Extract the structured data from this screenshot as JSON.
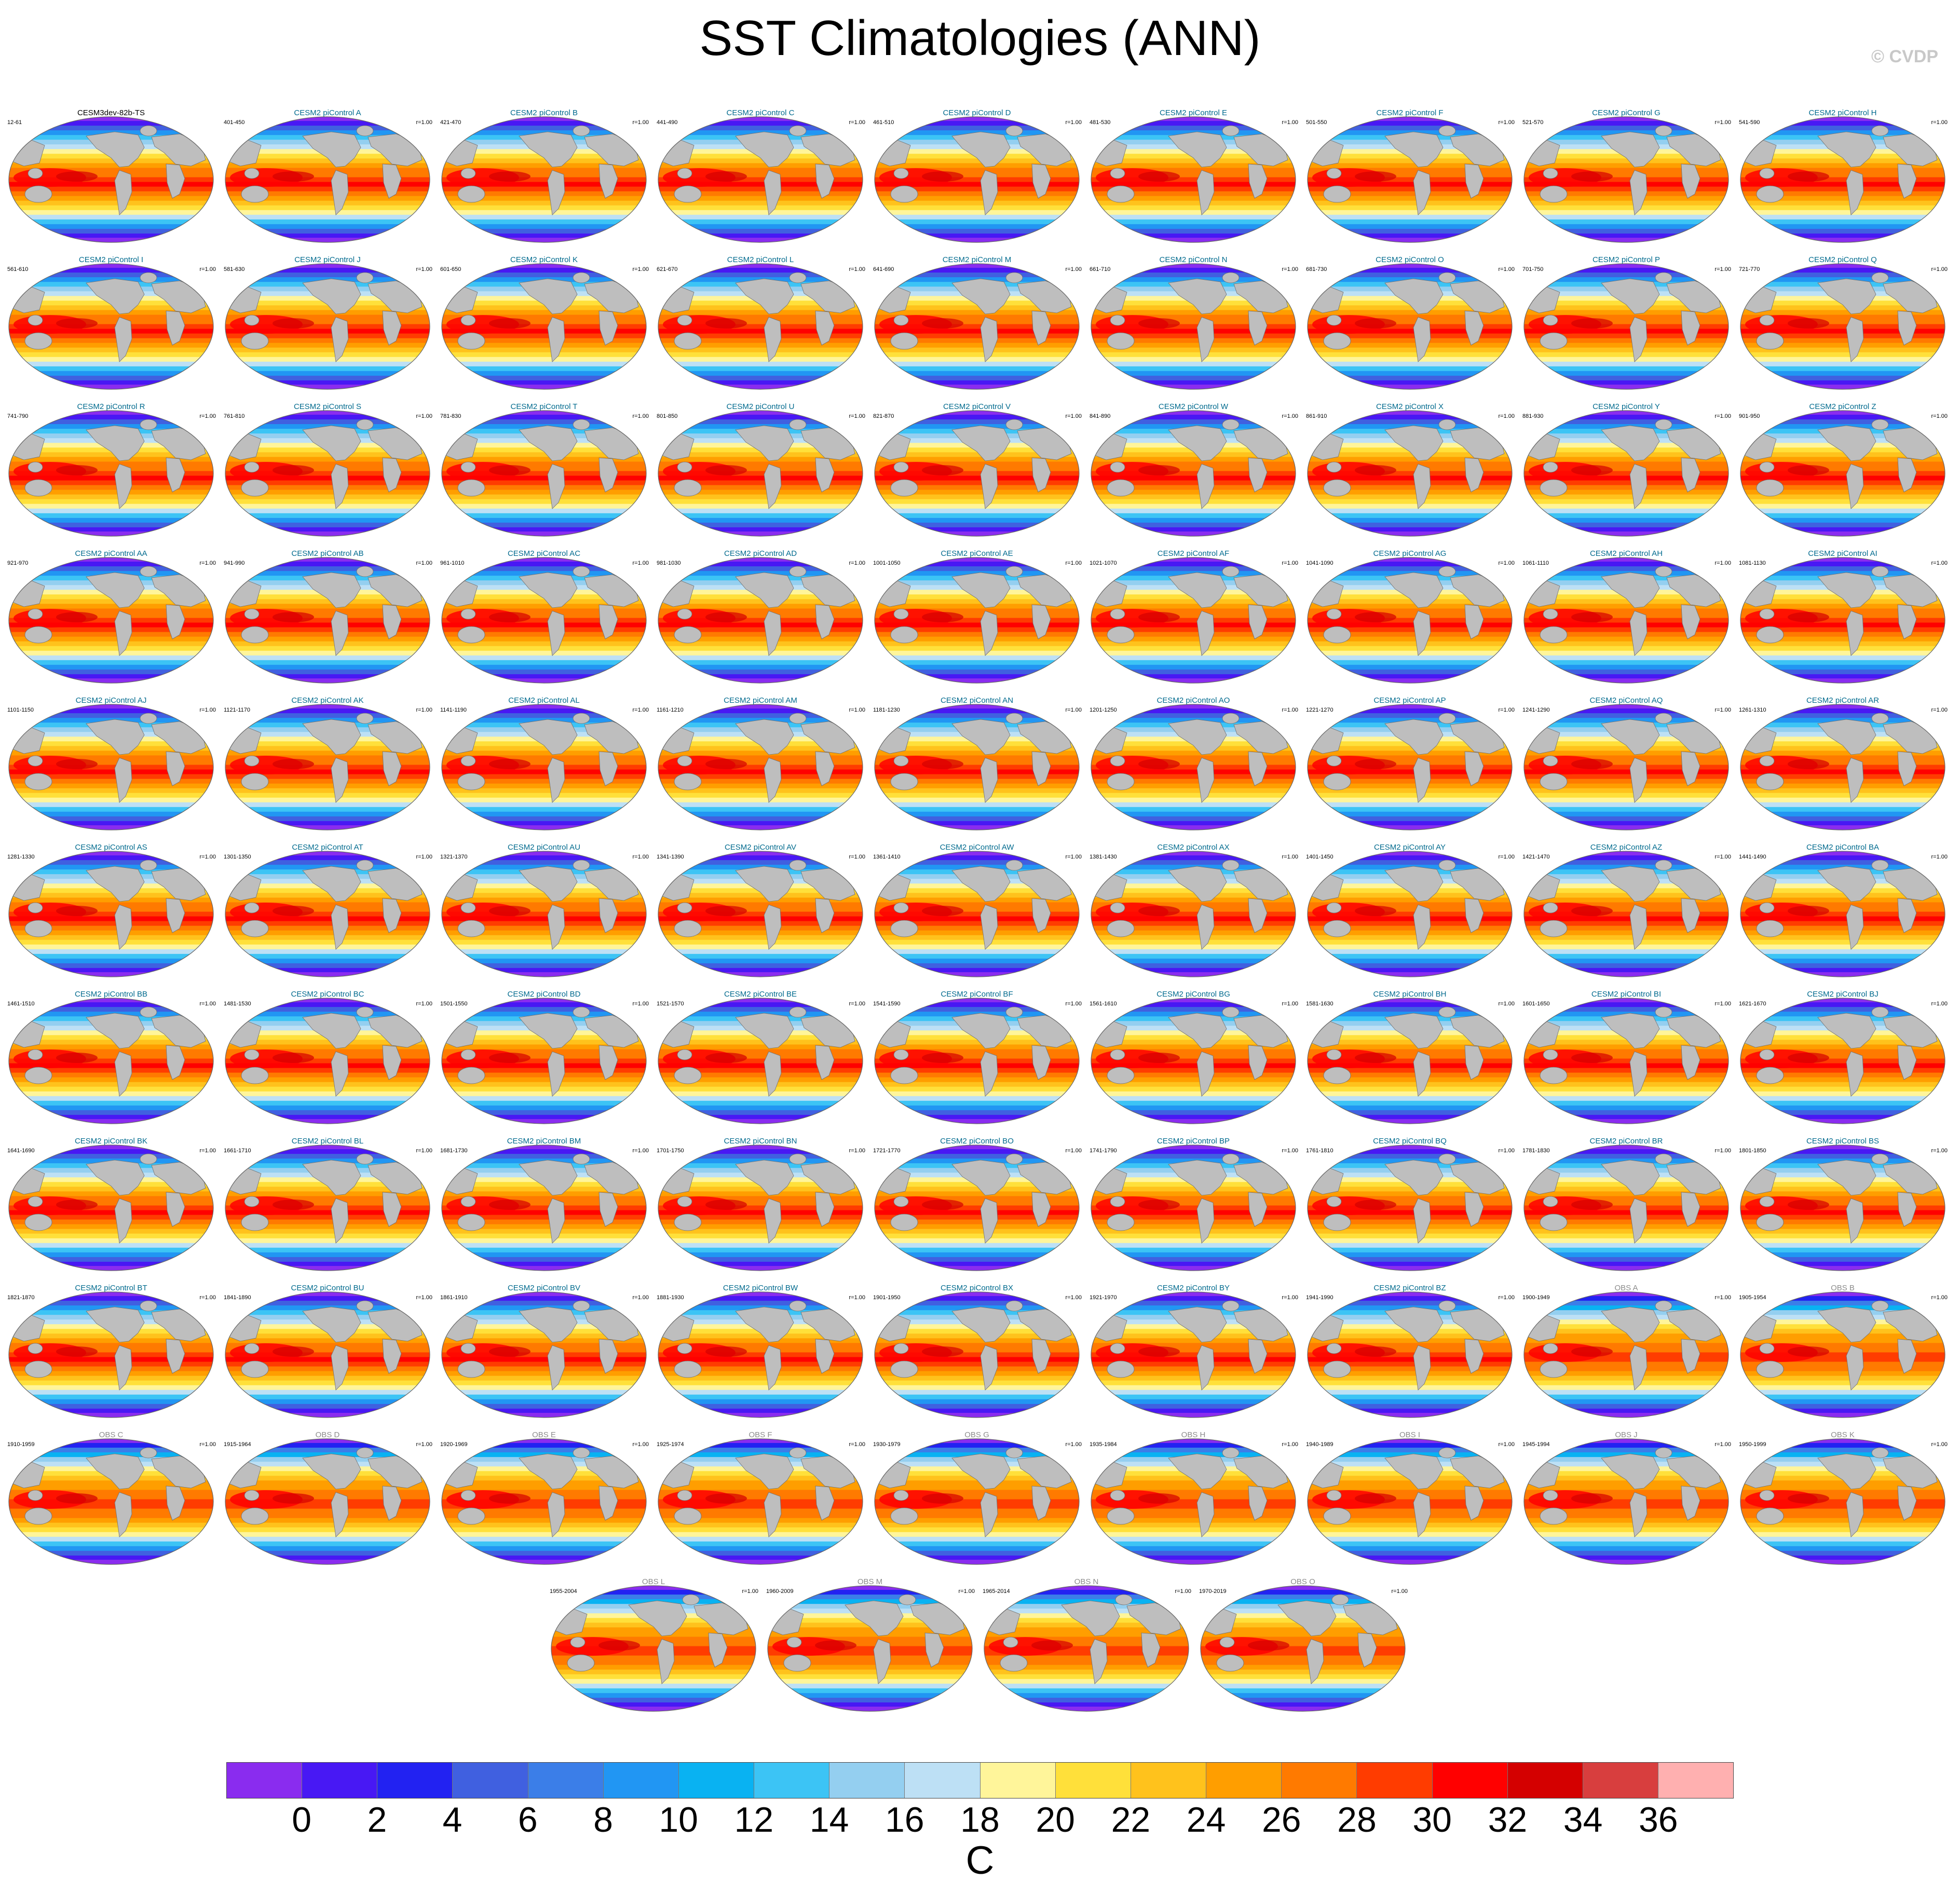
{
  "title": "SST Climatologies (ANN)",
  "copyright": "© CVDP",
  "colors": {
    "land": "#bebebe",
    "model_title": "#006a8e",
    "obs_title": "#8c8c8c",
    "reference_title": "#000000"
  },
  "chart_data": {
    "type": "heatmap",
    "title": "SST Climatologies (ANN)",
    "variable": "SST annual climatology",
    "units": "C",
    "colorbar": {
      "ticks": [
        "0",
        "2",
        "4",
        "6",
        "8",
        "10",
        "12",
        "14",
        "16",
        "18",
        "20",
        "22",
        "24",
        "26",
        "28",
        "30",
        "32",
        "34",
        "36"
      ],
      "levels": [
        0,
        2,
        4,
        6,
        8,
        10,
        12,
        14,
        16,
        18,
        20,
        22,
        24,
        26,
        28,
        30,
        32,
        34,
        36
      ],
      "colors": [
        "#8a2cef",
        "#4818f4",
        "#2222f2",
        "#4060e0",
        "#3b7ee8",
        "#2196f3",
        "#09b2f2",
        "#3cc4f5",
        "#94cff0",
        "#bde0f5",
        "#fff59a",
        "#ffe03a",
        "#ffc21c",
        "#ff9e00",
        "#ff7a00",
        "#ff3c00",
        "#ff0000",
        "#d40000",
        "#d83e3e",
        "#ffb0b0"
      ],
      "units_label": "C"
    },
    "panels": [
      {
        "title": "CESM3dev-82b-TS",
        "years": "12-61",
        "r": "",
        "kind": "ref"
      },
      {
        "title": "CESM2 piControl A",
        "years": "401-450",
        "r": "r=1.00",
        "kind": "model"
      },
      {
        "title": "CESM2 piControl B",
        "years": "421-470",
        "r": "r=1.00",
        "kind": "model"
      },
      {
        "title": "CESM2 piControl C",
        "years": "441-490",
        "r": "r=1.00",
        "kind": "model"
      },
      {
        "title": "CESM2 piControl D",
        "years": "461-510",
        "r": "r=1.00",
        "kind": "model"
      },
      {
        "title": "CESM2 piControl E",
        "years": "481-530",
        "r": "r=1.00",
        "kind": "model"
      },
      {
        "title": "CESM2 piControl F",
        "years": "501-550",
        "r": "r=1.00",
        "kind": "model"
      },
      {
        "title": "CESM2 piControl G",
        "years": "521-570",
        "r": "r=1.00",
        "kind": "model"
      },
      {
        "title": "CESM2 piControl H",
        "years": "541-590",
        "r": "r=1.00",
        "kind": "model"
      },
      {
        "title": "CESM2 piControl I",
        "years": "561-610",
        "r": "r=1.00",
        "kind": "model"
      },
      {
        "title": "CESM2 piControl J",
        "years": "581-630",
        "r": "r=1.00",
        "kind": "model"
      },
      {
        "title": "CESM2 piControl K",
        "years": "601-650",
        "r": "r=1.00",
        "kind": "model"
      },
      {
        "title": "CESM2 piControl L",
        "years": "621-670",
        "r": "r=1.00",
        "kind": "model"
      },
      {
        "title": "CESM2 piControl M",
        "years": "641-690",
        "r": "r=1.00",
        "kind": "model"
      },
      {
        "title": "CESM2 piControl N",
        "years": "661-710",
        "r": "r=1.00",
        "kind": "model"
      },
      {
        "title": "CESM2 piControl O",
        "years": "681-730",
        "r": "r=1.00",
        "kind": "model"
      },
      {
        "title": "CESM2 piControl P",
        "years": "701-750",
        "r": "r=1.00",
        "kind": "model"
      },
      {
        "title": "CESM2 piControl Q",
        "years": "721-770",
        "r": "r=1.00",
        "kind": "model"
      },
      {
        "title": "CESM2 piControl R",
        "years": "741-790",
        "r": "r=1.00",
        "kind": "model"
      },
      {
        "title": "CESM2 piControl S",
        "years": "761-810",
        "r": "r=1.00",
        "kind": "model"
      },
      {
        "title": "CESM2 piControl T",
        "years": "781-830",
        "r": "r=1.00",
        "kind": "model"
      },
      {
        "title": "CESM2 piControl U",
        "years": "801-850",
        "r": "r=1.00",
        "kind": "model"
      },
      {
        "title": "CESM2 piControl V",
        "years": "821-870",
        "r": "r=1.00",
        "kind": "model"
      },
      {
        "title": "CESM2 piControl W",
        "years": "841-890",
        "r": "r=1.00",
        "kind": "model"
      },
      {
        "title": "CESM2 piControl X",
        "years": "861-910",
        "r": "r=1.00",
        "kind": "model"
      },
      {
        "title": "CESM2 piControl Y",
        "years": "881-930",
        "r": "r=1.00",
        "kind": "model"
      },
      {
        "title": "CESM2 piControl Z",
        "years": "901-950",
        "r": "r=1.00",
        "kind": "model"
      },
      {
        "title": "CESM2 piControl AA",
        "years": "921-970",
        "r": "r=1.00",
        "kind": "model"
      },
      {
        "title": "CESM2 piControl AB",
        "years": "941-990",
        "r": "r=1.00",
        "kind": "model"
      },
      {
        "title": "CESM2 piControl AC",
        "years": "961-1010",
        "r": "r=1.00",
        "kind": "model"
      },
      {
        "title": "CESM2 piControl AD",
        "years": "981-1030",
        "r": "r=1.00",
        "kind": "model"
      },
      {
        "title": "CESM2 piControl AE",
        "years": "1001-1050",
        "r": "r=1.00",
        "kind": "model"
      },
      {
        "title": "CESM2 piControl AF",
        "years": "1021-1070",
        "r": "r=1.00",
        "kind": "model"
      },
      {
        "title": "CESM2 piControl AG",
        "years": "1041-1090",
        "r": "r=1.00",
        "kind": "model"
      },
      {
        "title": "CESM2 piControl AH",
        "years": "1061-1110",
        "r": "r=1.00",
        "kind": "model"
      },
      {
        "title": "CESM2 piControl AI",
        "years": "1081-1130",
        "r": "r=1.00",
        "kind": "model"
      },
      {
        "title": "CESM2 piControl AJ",
        "years": "1101-1150",
        "r": "r=1.00",
        "kind": "model"
      },
      {
        "title": "CESM2 piControl AK",
        "years": "1121-1170",
        "r": "r=1.00",
        "kind": "model"
      },
      {
        "title": "CESM2 piControl AL",
        "years": "1141-1190",
        "r": "r=1.00",
        "kind": "model"
      },
      {
        "title": "CESM2 piControl AM",
        "years": "1161-1210",
        "r": "r=1.00",
        "kind": "model"
      },
      {
        "title": "CESM2 piControl AN",
        "years": "1181-1230",
        "r": "r=1.00",
        "kind": "model"
      },
      {
        "title": "CESM2 piControl AO",
        "years": "1201-1250",
        "r": "r=1.00",
        "kind": "model"
      },
      {
        "title": "CESM2 piControl AP",
        "years": "1221-1270",
        "r": "r=1.00",
        "kind": "model"
      },
      {
        "title": "CESM2 piControl AQ",
        "years": "1241-1290",
        "r": "r=1.00",
        "kind": "model"
      },
      {
        "title": "CESM2 piControl AR",
        "years": "1261-1310",
        "r": "r=1.00",
        "kind": "model"
      },
      {
        "title": "CESM2 piControl AS",
        "years": "1281-1330",
        "r": "r=1.00",
        "kind": "model"
      },
      {
        "title": "CESM2 piControl AT",
        "years": "1301-1350",
        "r": "r=1.00",
        "kind": "model"
      },
      {
        "title": "CESM2 piControl AU",
        "years": "1321-1370",
        "r": "r=1.00",
        "kind": "model"
      },
      {
        "title": "CESM2 piControl AV",
        "years": "1341-1390",
        "r": "r=1.00",
        "kind": "model"
      },
      {
        "title": "CESM2 piControl AW",
        "years": "1361-1410",
        "r": "r=1.00",
        "kind": "model"
      },
      {
        "title": "CESM2 piControl AX",
        "years": "1381-1430",
        "r": "r=1.00",
        "kind": "model"
      },
      {
        "title": "CESM2 piControl AY",
        "years": "1401-1450",
        "r": "r=1.00",
        "kind": "model"
      },
      {
        "title": "CESM2 piControl AZ",
        "years": "1421-1470",
        "r": "r=1.00",
        "kind": "model"
      },
      {
        "title": "CESM2 piControl BA",
        "years": "1441-1490",
        "r": "r=1.00",
        "kind": "model"
      },
      {
        "title": "CESM2 piControl BB",
        "years": "1461-1510",
        "r": "r=1.00",
        "kind": "model"
      },
      {
        "title": "CESM2 piControl BC",
        "years": "1481-1530",
        "r": "r=1.00",
        "kind": "model"
      },
      {
        "title": "CESM2 piControl BD",
        "years": "1501-1550",
        "r": "r=1.00",
        "kind": "model"
      },
      {
        "title": "CESM2 piControl BE",
        "years": "1521-1570",
        "r": "r=1.00",
        "kind": "model"
      },
      {
        "title": "CESM2 piControl BF",
        "years": "1541-1590",
        "r": "r=1.00",
        "kind": "model"
      },
      {
        "title": "CESM2 piControl BG",
        "years": "1561-1610",
        "r": "r=1.00",
        "kind": "model"
      },
      {
        "title": "CESM2 piControl BH",
        "years": "1581-1630",
        "r": "r=1.00",
        "kind": "model"
      },
      {
        "title": "CESM2 piControl BI",
        "years": "1601-1650",
        "r": "r=1.00",
        "kind": "model"
      },
      {
        "title": "CESM2 piControl BJ",
        "years": "1621-1670",
        "r": "r=1.00",
        "kind": "model"
      },
      {
        "title": "CESM2 piControl BK",
        "years": "1641-1690",
        "r": "r=1.00",
        "kind": "model"
      },
      {
        "title": "CESM2 piControl BL",
        "years": "1661-1710",
        "r": "r=1.00",
        "kind": "model"
      },
      {
        "title": "CESM2 piControl BM",
        "years": "1681-1730",
        "r": "r=1.00",
        "kind": "model"
      },
      {
        "title": "CESM2 piControl BN",
        "years": "1701-1750",
        "r": "r=1.00",
        "kind": "model"
      },
      {
        "title": "CESM2 piControl BO",
        "years": "1721-1770",
        "r": "r=1.00",
        "kind": "model"
      },
      {
        "title": "CESM2 piControl BP",
        "years": "1741-1790",
        "r": "r=1.00",
        "kind": "model"
      },
      {
        "title": "CESM2 piControl BQ",
        "years": "1761-1810",
        "r": "r=1.00",
        "kind": "model"
      },
      {
        "title": "CESM2 piControl BR",
        "years": "1781-1830",
        "r": "r=1.00",
        "kind": "model"
      },
      {
        "title": "CESM2 piControl BS",
        "years": "1801-1850",
        "r": "r=1.00",
        "kind": "model"
      },
      {
        "title": "CESM2 piControl BT",
        "years": "1821-1870",
        "r": "r=1.00",
        "kind": "model"
      },
      {
        "title": "CESM2 piControl BU",
        "years": "1841-1890",
        "r": "r=1.00",
        "kind": "model"
      },
      {
        "title": "CESM2 piControl BV",
        "years": "1861-1910",
        "r": "r=1.00",
        "kind": "model"
      },
      {
        "title": "CESM2 piControl BW",
        "years": "1881-1930",
        "r": "r=1.00",
        "kind": "model"
      },
      {
        "title": "CESM2 piControl BX",
        "years": "1901-1950",
        "r": "r=1.00",
        "kind": "model"
      },
      {
        "title": "CESM2 piControl BY",
        "years": "1921-1970",
        "r": "r=1.00",
        "kind": "model"
      },
      {
        "title": "CESM2 piControl BZ",
        "years": "1941-1990",
        "r": "r=1.00",
        "kind": "model"
      },
      {
        "title": "OBS A",
        "years": "1900-1949",
        "r": "r=1.00",
        "kind": "obs"
      },
      {
        "title": "OBS B",
        "years": "1905-1954",
        "r": "r=1.00",
        "kind": "obs"
      },
      {
        "title": "OBS C",
        "years": "1910-1959",
        "r": "r=1.00",
        "kind": "obs"
      },
      {
        "title": "OBS D",
        "years": "1915-1964",
        "r": "r=1.00",
        "kind": "obs"
      },
      {
        "title": "OBS E",
        "years": "1920-1969",
        "r": "r=1.00",
        "kind": "obs"
      },
      {
        "title": "OBS F",
        "years": "1925-1974",
        "r": "r=1.00",
        "kind": "obs"
      },
      {
        "title": "OBS G",
        "years": "1930-1979",
        "r": "r=1.00",
        "kind": "obs"
      },
      {
        "title": "OBS H",
        "years": "1935-1984",
        "r": "r=1.00",
        "kind": "obs"
      },
      {
        "title": "OBS I",
        "years": "1940-1989",
        "r": "r=1.00",
        "kind": "obs"
      },
      {
        "title": "OBS J",
        "years": "1945-1994",
        "r": "r=1.00",
        "kind": "obs"
      },
      {
        "title": "OBS K",
        "years": "1950-1999",
        "r": "r=1.00",
        "kind": "obs"
      },
      {
        "title": "OBS L",
        "years": "1955-2004",
        "r": "r=1.00",
        "kind": "obs"
      },
      {
        "title": "OBS M",
        "years": "1960-2009",
        "r": "r=1.00",
        "kind": "obs"
      },
      {
        "title": "OBS N",
        "years": "1965-2014",
        "r": "r=1.00",
        "kind": "obs"
      },
      {
        "title": "OBS O",
        "years": "1970-2019",
        "r": "r=1.00",
        "kind": "obs"
      }
    ]
  }
}
